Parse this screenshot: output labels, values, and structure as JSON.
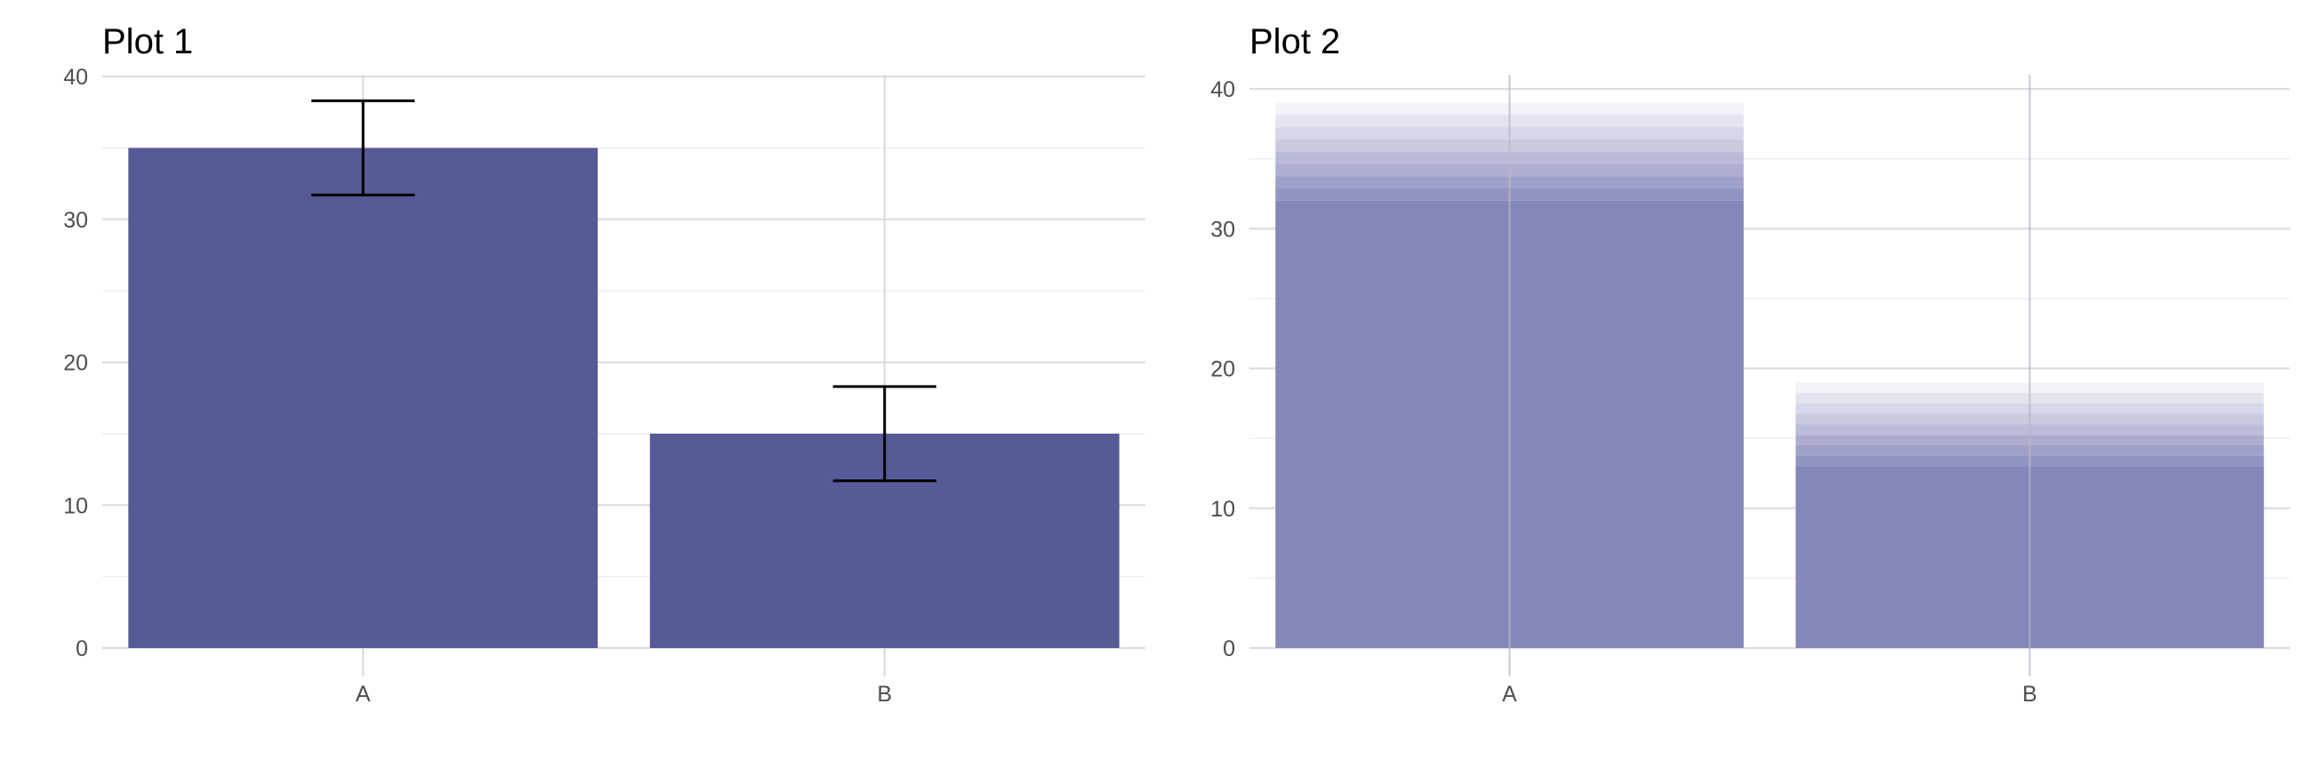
{
  "chart_data": [
    {
      "type": "bar",
      "title": "Plot 1",
      "categories": [
        "A",
        "B"
      ],
      "values": [
        35,
        15
      ],
      "error_bars": [
        {
          "lower": 31.7,
          "upper": 38.3
        },
        {
          "lower": 11.7,
          "upper": 18.3
        }
      ],
      "ylim": [
        0,
        40
      ],
      "yticks": [
        0,
        10,
        20,
        30,
        40
      ],
      "grid": true,
      "bar_color": "#565a97",
      "xlabel": "",
      "ylabel": ""
    },
    {
      "type": "bar",
      "title": "Plot 2",
      "categories": [
        "A",
        "B"
      ],
      "values": [
        39,
        19
      ],
      "gradient_layers": [
        {
          "bottom": 32,
          "top": 39
        },
        {
          "bottom": 13,
          "top": 19
        }
      ],
      "ylim": [
        0,
        40
      ],
      "yticks": [
        0,
        10,
        20,
        30,
        40
      ],
      "grid": true,
      "bar_color": "#8586b9",
      "xlabel": "",
      "ylabel": ""
    }
  ]
}
